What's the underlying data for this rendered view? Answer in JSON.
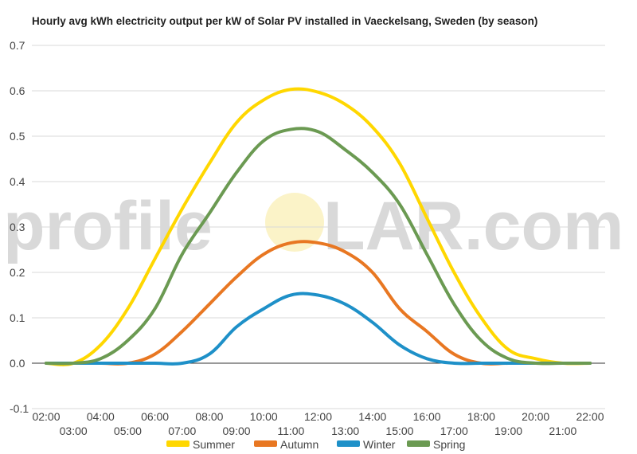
{
  "chart_data": {
    "type": "line",
    "title": "Hourly avg kWh electricity output per kW of Solar PV installed in Vaeckelsang, Sweden (by season)",
    "xlabel": "",
    "ylabel": "",
    "ylim": [
      -0.1,
      0.7
    ],
    "yticks": [
      "-0.1",
      "0.0",
      "0.1",
      "0.2",
      "0.3",
      "0.4",
      "0.5",
      "0.6",
      "0.7"
    ],
    "x": [
      "02:00",
      "03:00",
      "04:00",
      "05:00",
      "06:00",
      "07:00",
      "08:00",
      "09:00",
      "10:00",
      "11:00",
      "12:00",
      "13:00",
      "14:00",
      "15:00",
      "16:00",
      "17:00",
      "18:00",
      "19:00",
      "20:00",
      "21:00",
      "22:00"
    ],
    "grid": true,
    "legend": "bottom",
    "series": [
      {
        "name": "Summer",
        "color": "#FFD700",
        "values": [
          0.0,
          0.0,
          0.04,
          0.12,
          0.23,
          0.34,
          0.44,
          0.53,
          0.58,
          0.603,
          0.597,
          0.57,
          0.52,
          0.44,
          0.32,
          0.2,
          0.1,
          0.03,
          0.01,
          0.0,
          0.0
        ]
      },
      {
        "name": "Autumn",
        "color": "#E87722",
        "values": [
          0.0,
          0.0,
          0.0,
          0.0,
          0.02,
          0.07,
          0.13,
          0.19,
          0.24,
          0.265,
          0.265,
          0.245,
          0.2,
          0.12,
          0.07,
          0.02,
          0.0,
          0.0,
          0.0,
          0.0,
          0.0
        ]
      },
      {
        "name": "Winter",
        "color": "#1E90C8",
        "values": [
          0.0,
          0.0,
          0.0,
          0.0,
          0.0,
          0.0,
          0.02,
          0.08,
          0.12,
          0.15,
          0.15,
          0.13,
          0.09,
          0.04,
          0.01,
          0.0,
          0.0,
          0.0,
          0.0,
          0.0,
          0.0
        ]
      },
      {
        "name": "Spring",
        "color": "#6B9A52",
        "values": [
          0.0,
          0.0,
          0.01,
          0.05,
          0.12,
          0.24,
          0.33,
          0.42,
          0.49,
          0.515,
          0.51,
          0.47,
          0.42,
          0.35,
          0.24,
          0.13,
          0.05,
          0.01,
          0.0,
          0.0,
          0.0
        ]
      }
    ]
  },
  "watermark": {
    "left": "profile",
    "right": "LAR.com"
  }
}
